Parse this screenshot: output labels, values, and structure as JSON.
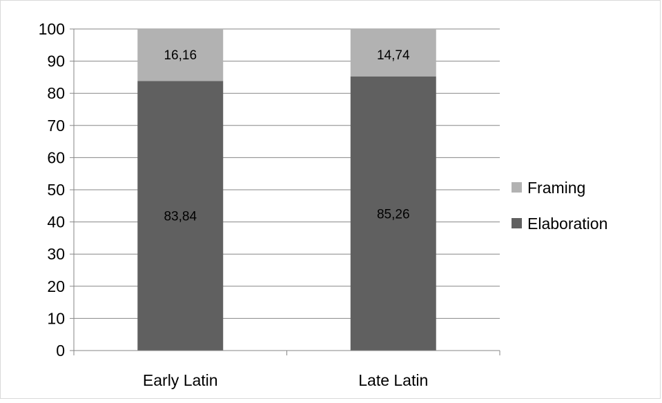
{
  "chart_data": {
    "type": "bar",
    "stacked": true,
    "categories": [
      "Early Latin",
      "Late Latin"
    ],
    "series": [
      {
        "name": "Elaboration",
        "values": [
          83.84,
          85.26
        ],
        "labels": [
          "83,84",
          "85,26"
        ],
        "color": "#606060"
      },
      {
        "name": "Framing",
        "values": [
          16.16,
          14.74
        ],
        "labels": [
          "16,16",
          "14,74"
        ],
        "color": "#b2b2b2"
      }
    ],
    "ylim": [
      0,
      100
    ],
    "yticks": [
      0,
      10,
      20,
      30,
      40,
      50,
      60,
      70,
      80,
      90,
      100
    ],
    "grid": true,
    "legend_position": "right",
    "legend_order": [
      "Framing",
      "Elaboration"
    ],
    "title": "",
    "xlabel": "",
    "ylabel": ""
  }
}
